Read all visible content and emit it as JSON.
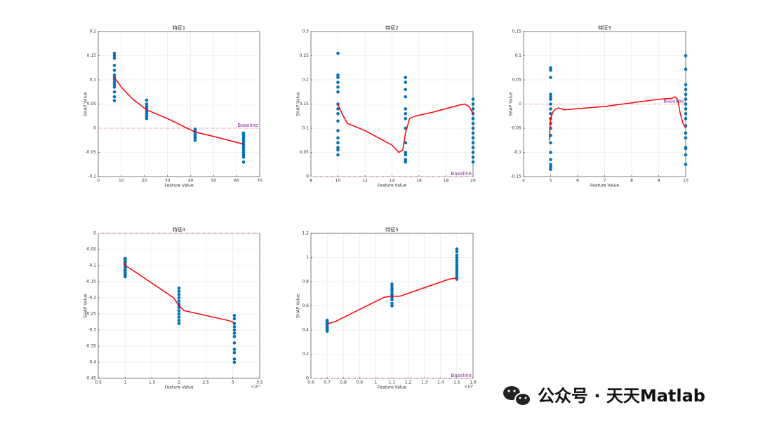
{
  "chart_data": [
    {
      "type": "scatter",
      "title": "特征1",
      "xlabel": "Feature Value",
      "ylabel": "SHAP Value",
      "xlim": [
        0,
        70
      ],
      "xticks": [
        0,
        10,
        20,
        30,
        40,
        50,
        60,
        70
      ],
      "ylim": [
        -0.1,
        0.2
      ],
      "yticks": [
        -0.1,
        -0.05,
        0,
        0.05,
        0.1,
        0.15,
        0.2
      ],
      "grid": true,
      "baseline": {
        "value": 0,
        "label": "Baseline",
        "color": "#e8a6d2",
        "label_color": "#7e2f8e"
      },
      "series": [
        {
          "mode": "markers",
          "color": "#0072bd",
          "x": [
            7,
            7,
            7,
            7,
            7,
            7,
            7,
            7,
            7,
            7,
            7,
            7,
            7,
            7,
            21,
            21,
            21,
            21,
            21,
            21,
            21,
            21,
            42,
            42,
            42,
            42,
            42,
            42,
            42,
            42,
            63,
            63,
            63,
            63,
            63,
            63,
            63,
            63,
            63,
            63,
            63,
            63
          ],
          "values": [
            0.155,
            0.15,
            0.145,
            0.13,
            0.12,
            0.11,
            0.105,
            0.1,
            0.095,
            0.09,
            0.085,
            0.075,
            0.065,
            0.057,
            0.058,
            0.05,
            0.045,
            0.04,
            0.035,
            0.03,
            0.025,
            0.02,
            -0.002,
            -0.005,
            -0.008,
            -0.01,
            -0.013,
            -0.016,
            -0.02,
            -0.025,
            -0.01,
            -0.015,
            -0.02,
            -0.025,
            -0.03,
            -0.035,
            -0.04,
            -0.045,
            -0.05,
            -0.055,
            -0.06,
            -0.07
          ]
        },
        {
          "mode": "line",
          "color": "#ff0000",
          "x": [
            7,
            10,
            15,
            21,
            30,
            42,
            50,
            63
          ],
          "values": [
            0.105,
            0.085,
            0.06,
            0.038,
            0.02,
            -0.008,
            -0.017,
            -0.033
          ]
        }
      ]
    },
    {
      "type": "scatter",
      "title": "特征2",
      "xlabel": "Feature Value",
      "ylabel": "SHAP Value",
      "xlim": [
        8,
        20
      ],
      "xticks": [
        8,
        10,
        12,
        14,
        16,
        18,
        20
      ],
      "ylim": [
        0,
        0.3
      ],
      "yticks": [
        0,
        0.05,
        0.1,
        0.15,
        0.2,
        0.25,
        0.3
      ],
      "grid": true,
      "baseline": {
        "value": 0,
        "label": "Baseline",
        "color": "#e8a6d2",
        "label_color": "#7e2f8e"
      },
      "series": [
        {
          "mode": "markers",
          "color": "#0072bd",
          "x": [
            10,
            10,
            10,
            10,
            10,
            10,
            10,
            10,
            10,
            10,
            10,
            10,
            10,
            10,
            10,
            10,
            15,
            15,
            15,
            15,
            15,
            15,
            15,
            15,
            15,
            15,
            15,
            15,
            15,
            20,
            20,
            20,
            20,
            20,
            20,
            20,
            20,
            20,
            20,
            20,
            20,
            20,
            20
          ],
          "values": [
            0.255,
            0.21,
            0.205,
            0.195,
            0.185,
            0.175,
            0.15,
            0.14,
            0.13,
            0.115,
            0.095,
            0.08,
            0.07,
            0.06,
            0.055,
            0.045,
            0.205,
            0.195,
            0.18,
            0.165,
            0.14,
            0.13,
            0.12,
            0.1,
            0.07,
            0.05,
            0.045,
            0.035,
            0.03,
            0.16,
            0.15,
            0.14,
            0.13,
            0.12,
            0.11,
            0.1,
            0.09,
            0.08,
            0.07,
            0.06,
            0.05,
            0.04,
            0.03
          ]
        },
        {
          "mode": "line",
          "color": "#ff0000",
          "x": [
            10,
            10.3,
            10.7,
            12,
            13,
            14,
            14.5,
            14.8,
            15,
            15.3,
            15.7,
            17,
            19,
            19.4,
            19.7,
            20
          ],
          "values": [
            0.15,
            0.13,
            0.11,
            0.095,
            0.08,
            0.065,
            0.05,
            0.055,
            0.09,
            0.12,
            0.125,
            0.133,
            0.148,
            0.15,
            0.145,
            0.13
          ]
        }
      ]
    },
    {
      "type": "scatter",
      "title": "特征3",
      "xlabel": "Feature Value",
      "ylabel": "SHAP Value",
      "xlim": [
        4,
        10
      ],
      "xticks": [
        4,
        5,
        6,
        7,
        8,
        9,
        10
      ],
      "ylim": [
        -0.15,
        0.15
      ],
      "yticks": [
        -0.15,
        -0.1,
        -0.05,
        0,
        0.05,
        0.1,
        0.15
      ],
      "grid": true,
      "baseline": {
        "value": 0,
        "label": "Baseline",
        "color": "#e8a6d2",
        "label_color": "#7e2f8e"
      },
      "series": [
        {
          "mode": "markers",
          "color": "#0072bd",
          "x": [
            5,
            5,
            5,
            5,
            5,
            5,
            5,
            5,
            5,
            5,
            5,
            5,
            5,
            5,
            5,
            5,
            5,
            5,
            5,
            10,
            10,
            10,
            10,
            10,
            10,
            10,
            10,
            10,
            10,
            10,
            10,
            10,
            10,
            10,
            10,
            10
          ],
          "values": [
            0.075,
            0.07,
            0.055,
            0.02,
            0.015,
            0.01,
            0,
            -0.01,
            -0.02,
            -0.03,
            -0.04,
            -0.05,
            -0.065,
            -0.08,
            -0.1,
            -0.115,
            -0.125,
            -0.13,
            -0.135,
            0.1,
            0.072,
            0.04,
            0.03,
            0.02,
            0.01,
            0,
            -0.01,
            -0.02,
            -0.03,
            -0.045,
            -0.06,
            -0.07,
            -0.09,
            -0.092,
            -0.105,
            -0.125
          ]
        },
        {
          "mode": "line",
          "color": "#ff0000",
          "x": [
            4.95,
            5,
            5.1,
            5.2,
            5.3,
            5.5,
            7,
            9,
            9.5,
            9.6,
            9.7,
            9.8,
            9.9,
            10
          ],
          "values": [
            -0.075,
            -0.03,
            -0.015,
            -0.01,
            -0.008,
            -0.012,
            -0.005,
            0.01,
            0.012,
            0.015,
            0.01,
            -0.02,
            -0.04,
            -0.05
          ]
        }
      ]
    },
    {
      "type": "scatter",
      "title": "特征4",
      "xlabel": "Feature Value",
      "ylabel": "SHAP Value",
      "x_exponent": "×10⁴",
      "xlim": [
        0.5,
        3.5
      ],
      "xticks": [
        0.5,
        1,
        1.5,
        2,
        2.5,
        3,
        3.5
      ],
      "ylim": [
        -0.45,
        0
      ],
      "yticks": [
        -0.45,
        -0.4,
        -0.35,
        -0.3,
        -0.25,
        -0.2,
        -0.15,
        -0.1,
        -0.05,
        0
      ],
      "grid": true,
      "baseline": {
        "value": 0,
        "color": "#e8a6d2"
      },
      "series": [
        {
          "mode": "markers",
          "color": "#0072bd",
          "x": [
            1,
            1,
            1,
            1,
            1,
            1,
            1,
            1,
            1,
            1,
            1,
            1,
            1,
            2,
            2,
            2,
            2,
            2,
            2,
            2,
            2,
            2,
            2,
            2,
            2,
            2,
            3.03,
            3.03,
            3.03,
            3.03,
            3.03,
            3.03,
            3.03,
            3.03,
            3.03,
            3.03,
            3.03,
            3.03
          ],
          "values": [
            -0.078,
            -0.082,
            -0.088,
            -0.092,
            -0.097,
            -0.1,
            -0.105,
            -0.11,
            -0.115,
            -0.12,
            -0.125,
            -0.13,
            -0.135,
            -0.17,
            -0.18,
            -0.19,
            -0.2,
            -0.21,
            -0.22,
            -0.225,
            -0.23,
            -0.24,
            -0.25,
            -0.26,
            -0.27,
            -0.28,
            -0.255,
            -0.265,
            -0.28,
            -0.29,
            -0.3,
            -0.31,
            -0.32,
            -0.34,
            -0.36,
            -0.37,
            -0.39,
            -0.4
          ]
        },
        {
          "mode": "line",
          "color": "#ff0000",
          "x": [
            0.97,
            1,
            1.1,
            1.5,
            1.9,
            2,
            2.1,
            2.5,
            2.9,
            3,
            3.02
          ],
          "values": [
            -0.09,
            -0.1,
            -0.11,
            -0.155,
            -0.2,
            -0.225,
            -0.24,
            -0.255,
            -0.27,
            -0.275,
            -0.28
          ]
        }
      ]
    },
    {
      "type": "scatter",
      "title": "特征5",
      "xlabel": "Feature Value",
      "ylabel": "SHAP Value",
      "x_exponent": "×10⁴",
      "xlim": [
        0.6,
        1.6
      ],
      "xticks": [
        0.6,
        0.7,
        0.8,
        0.9,
        1,
        1.1,
        1.2,
        1.3,
        1.4,
        1.5,
        1.6
      ],
      "ylim": [
        0,
        1.2
      ],
      "yticks": [
        0,
        0.2,
        0.4,
        0.6,
        0.8,
        1,
        1.2
      ],
      "grid": true,
      "baseline": {
        "value": 0,
        "label": "Baseline",
        "color": "#e8a6d2",
        "label_color": "#7e2f8e"
      },
      "series": [
        {
          "mode": "markers",
          "color": "#0072bd",
          "x": [
            0.7,
            0.7,
            0.7,
            0.7,
            0.7,
            0.7,
            0.7,
            0.7,
            0.7,
            0.7,
            1.1,
            1.1,
            1.1,
            1.1,
            1.1,
            1.1,
            1.1,
            1.1,
            1.1,
            1.1,
            1.1,
            1.5,
            1.5,
            1.5,
            1.5,
            1.5,
            1.5,
            1.5,
            1.5,
            1.5,
            1.5,
            1.5,
            1.5,
            1.5
          ],
          "values": [
            0.48,
            0.47,
            0.46,
            0.45,
            0.44,
            0.43,
            0.42,
            0.41,
            0.4,
            0.39,
            0.78,
            0.76,
            0.74,
            0.72,
            0.7,
            0.69,
            0.68,
            0.67,
            0.65,
            0.62,
            0.6,
            1.07,
            1.05,
            1.02,
            1,
            0.98,
            0.96,
            0.94,
            0.92,
            0.9,
            0.88,
            0.86,
            0.84,
            0.82
          ]
        },
        {
          "mode": "line",
          "color": "#ff0000",
          "x": [
            0.7,
            0.75,
            0.9,
            1.05,
            1.1,
            1.15,
            1.3,
            1.45,
            1.5
          ],
          "values": [
            0.45,
            0.47,
            0.57,
            0.67,
            0.68,
            0.68,
            0.75,
            0.82,
            0.83
          ]
        }
      ]
    }
  ],
  "watermark": "公众号 · 天天Matlab"
}
